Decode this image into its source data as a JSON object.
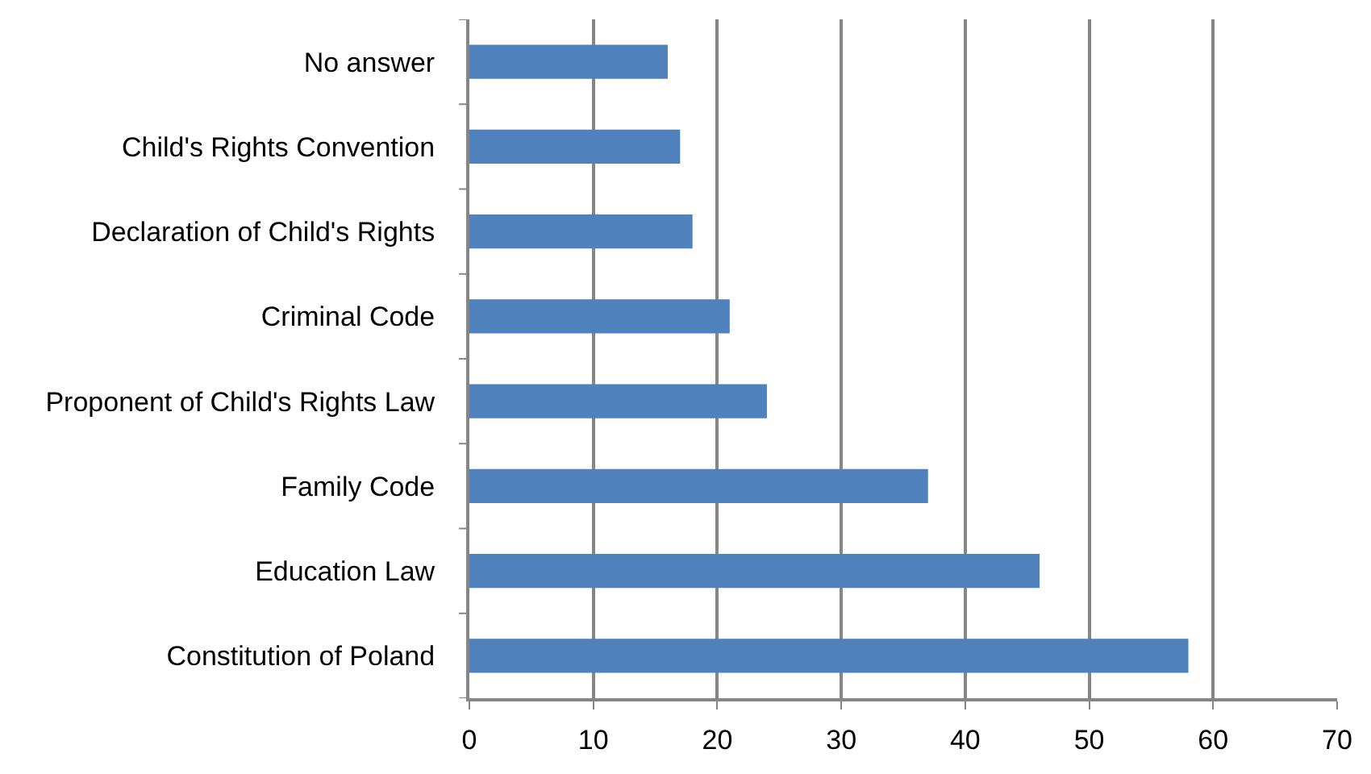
{
  "chart_data": {
    "type": "bar",
    "orientation": "horizontal",
    "categories": [
      "No answer",
      "Child's Rights Convention",
      "Declaration of Child's Rights",
      "Criminal Code",
      "Proponent of Child's Rights Law",
      "Family Code",
      "Education Law",
      "Constitution of Poland"
    ],
    "values": [
      16,
      17,
      18,
      21,
      24,
      37,
      46,
      58
    ],
    "color": "#4f81bd",
    "xlim": [
      0,
      70
    ],
    "xticks": [
      0,
      10,
      20,
      30,
      40,
      50,
      60,
      70
    ],
    "grid": "x"
  }
}
